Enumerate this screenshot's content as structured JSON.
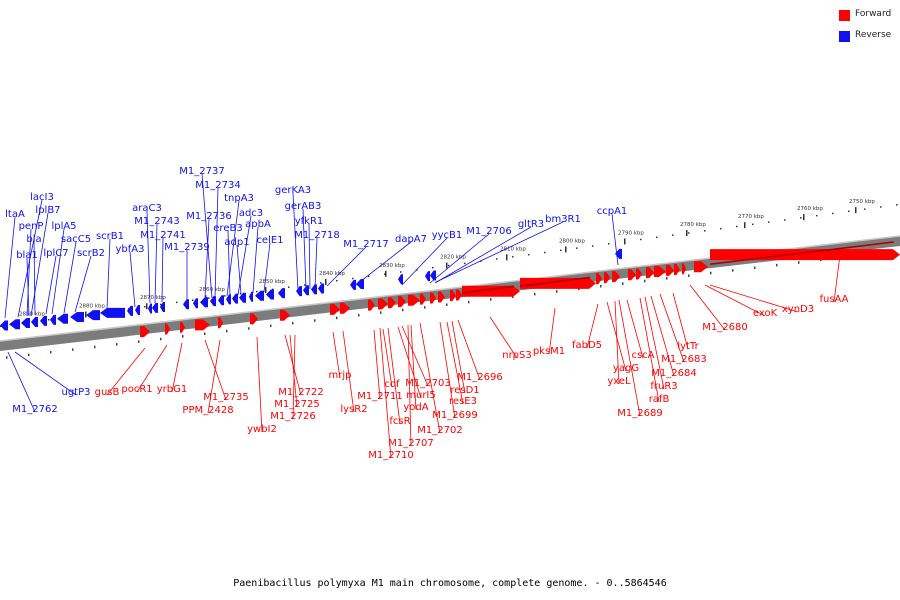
{
  "colors": {
    "forward": "#ff0000",
    "reverse": "#1010f0",
    "backbone": "#7a7a7a"
  },
  "legend": [
    {
      "label": "Forward",
      "color": "#ff0000"
    },
    {
      "label": "Reverse",
      "color": "#1010f0"
    }
  ],
  "caption": "Paenibacillus polymyxa M1 main chromosome, complete genome. - 0..5864546",
  "scale_ticks": [
    "2750 kbp",
    "2760 kbp",
    "2770 kbp",
    "2780 kbp",
    "2790 kbp",
    "2800 kbp",
    "2810 kbp",
    "2820 kbp",
    "2830 kbp",
    "2840 kbp",
    "2850 kbp",
    "2860 kbp",
    "2870 kbp",
    "2880 kbp",
    "2890 kbp"
  ],
  "reverse_labels": [
    "ltaA",
    "lacI3",
    "penP",
    "lplB7",
    "bla",
    "bla1",
    "lplC7",
    "lplA5",
    "sacC5",
    "scrB2",
    "scrB1",
    "ybfA3",
    "araC3",
    "M1_2743",
    "M1_2741",
    "M1_2739",
    "M1_2737",
    "M1_2734",
    "M1_2736",
    "tnpA3",
    "ereB3",
    "adc3",
    "adp1",
    "apbA",
    "celE1",
    "gerKA3",
    "gerAB3",
    "yfkR1",
    "M1_2718",
    "M1_2717",
    "dapA7",
    "yycB1",
    "M1_2706",
    "gltR3",
    "bm3R1",
    "ccpA1",
    "ugtP3",
    "M1_2762"
  ],
  "forward_labels": [
    "gusB",
    "pocR1",
    "yrbG1",
    "M1_2735",
    "PPM_2428",
    "ywbI2",
    "M1_2722",
    "M1_2725",
    "M1_2726",
    "mrjp",
    "lysR2",
    "M1_2711",
    "cof",
    "fcsR",
    "murI5",
    "M1_2703",
    "yodA",
    "M1_2707",
    "M1_2710",
    "M1_2702",
    "M1_2699",
    "resE3",
    "resD1",
    "M1_2696",
    "nrpS3",
    "pksM1",
    "fabD5",
    "yagG",
    "yxeL",
    "cscA",
    "M1_2689",
    "rafB",
    "fruR3",
    "M1_2684",
    "M1_2683",
    "lytTr",
    "M1_2680",
    "exoK",
    "xynD3",
    "fusAA"
  ]
}
